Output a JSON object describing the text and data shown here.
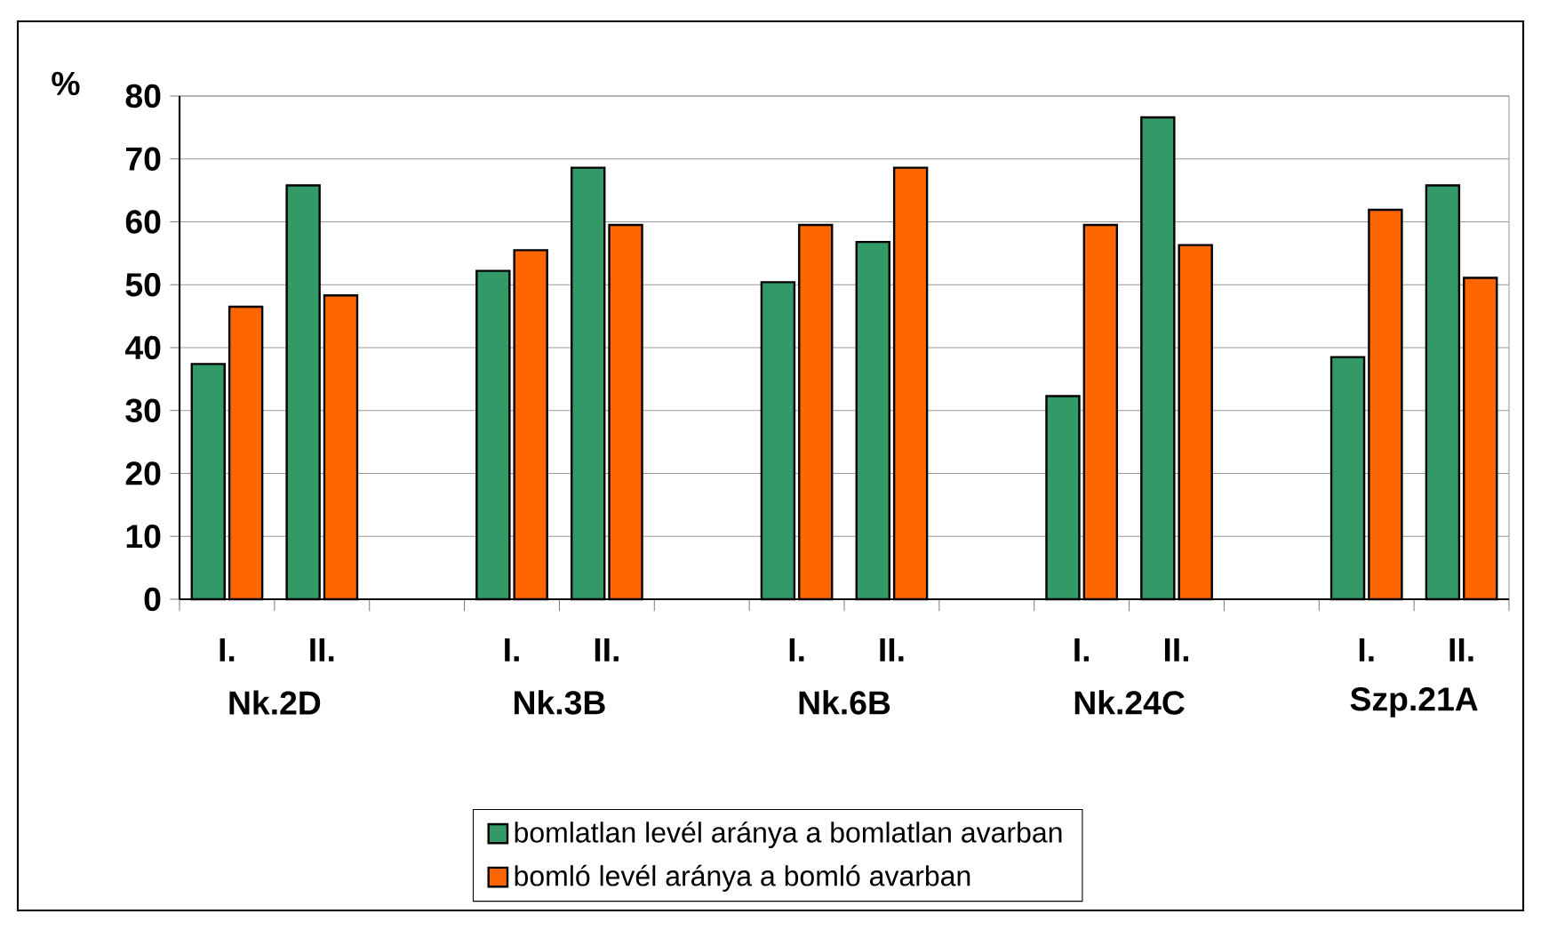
{
  "chart_data": {
    "type": "bar",
    "ylabel": "%",
    "categories": [
      "I.",
      "II.",
      null,
      "I.",
      "II.",
      null,
      "I.",
      "II.",
      null,
      "I.",
      "II.",
      null,
      "I.",
      "II."
    ],
    "annotations": [
      "Nk.2D",
      "Nk.3B",
      "Nk.6B",
      "Nk.24C",
      "Szp.21A"
    ],
    "series": [
      {
        "name": "bomlatlan levél aránya a bomlatlan avarban",
        "color": "#339966",
        "values": [
          37.4,
          65.8,
          null,
          52.2,
          68.6,
          null,
          50.4,
          56.8,
          null,
          32.3,
          76.6,
          null,
          38.5,
          65.8
        ]
      },
      {
        "name": "bomló levél aránya a bomló avarban",
        "color": "#ff6600",
        "values": [
          46.5,
          48.3,
          null,
          55.5,
          59.5,
          null,
          59.5,
          68.6,
          null,
          59.5,
          56.3,
          null,
          61.9,
          51.1
        ]
      }
    ],
    "ylim": [
      0,
      80
    ],
    "yticks": [
      0,
      10,
      20,
      30,
      40,
      50,
      60,
      70,
      80
    ],
    "grid": "y",
    "legend": "bottom"
  }
}
